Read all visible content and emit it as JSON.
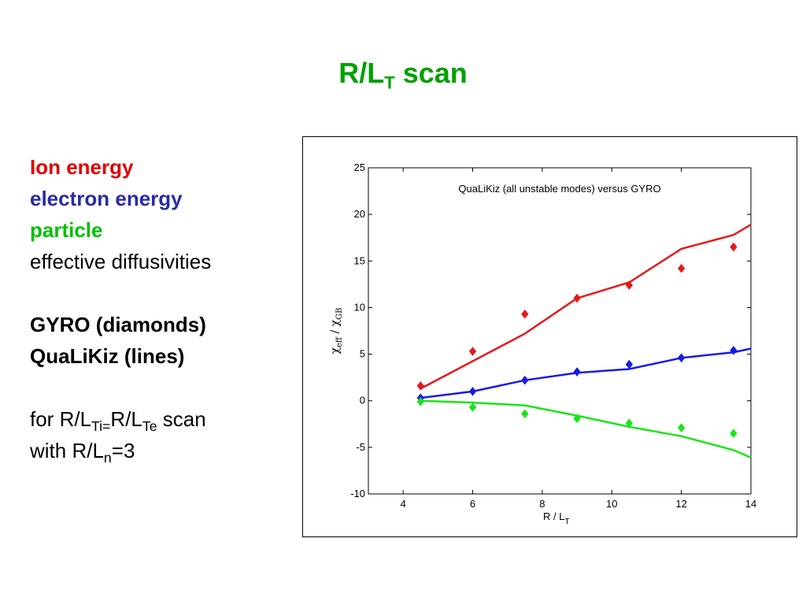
{
  "slide": {
    "title_main": "R/L",
    "title_sub": "T",
    "title_end": " scan",
    "lines": {
      "ion": "Ion energy",
      "electron": "electron energy",
      "particle": "particle",
      "effective": "effective diffusivities",
      "gyro": "GYRO (diamonds)",
      "qualikiz": "QuaLiKiz (lines)",
      "scan_a": "for R/L",
      "scan_ti": "Ti=",
      "scan_b": "R/L",
      "scan_te": "Te",
      "scan_c": " scan",
      "with_a": "with R/L",
      "with_n": "n",
      "with_b": "=3"
    }
  },
  "chart_data": {
    "type": "line",
    "title": "QuaLiKiz (all unstable modes) versus GYRO",
    "xlabel": "R / L",
    "xlabel_sub": "T",
    "ylabel": "χ",
    "ylabel_sub1": "eff",
    "ylabel_mid": " / χ",
    "ylabel_sub2": "GB",
    "xlim": [
      3,
      14
    ],
    "ylim": [
      -10,
      25
    ],
    "xticks": [
      4,
      6,
      8,
      10,
      12,
      14
    ],
    "yticks": [
      -10,
      -5,
      0,
      5,
      10,
      15,
      20,
      25
    ],
    "colors": {
      "ion": "#e41a1a",
      "electron": "#1a1ae4",
      "particle": "#1ae41a"
    },
    "series": [
      {
        "key": "ion",
        "kind": "line",
        "color": "#e41a1a",
        "x": [
          4.5,
          7.5,
          9,
          10.5,
          12,
          13.5,
          14
        ],
        "y": [
          1.3,
          7.2,
          11.0,
          12.7,
          16.3,
          17.8,
          18.9
        ]
      },
      {
        "key": "ion",
        "kind": "diamonds",
        "color": "#e41a1a",
        "x": [
          4.5,
          6,
          7.5,
          9,
          10.5,
          12,
          13.5
        ],
        "y": [
          1.6,
          5.3,
          9.3,
          11.0,
          12.4,
          14.2,
          16.5
        ]
      },
      {
        "key": "electron",
        "kind": "line",
        "color": "#1a1ae4",
        "x": [
          4.5,
          6,
          7.5,
          9,
          10.5,
          12,
          13.5,
          14
        ],
        "y": [
          0.3,
          1.0,
          2.2,
          3.0,
          3.4,
          4.6,
          5.2,
          5.6
        ]
      },
      {
        "key": "electron",
        "kind": "diamonds",
        "color": "#1a1ae4",
        "x": [
          4.5,
          6,
          7.5,
          9,
          10.5,
          12,
          13.5
        ],
        "y": [
          0.3,
          1.0,
          2.2,
          3.1,
          3.9,
          4.6,
          5.4
        ]
      },
      {
        "key": "particle",
        "kind": "line",
        "color": "#1ae41a",
        "x": [
          4.5,
          6,
          7.5,
          9,
          10.5,
          12,
          13.5,
          14
        ],
        "y": [
          0.0,
          -0.2,
          -0.5,
          -1.6,
          -2.8,
          -3.8,
          -5.3,
          -6.1
        ]
      },
      {
        "key": "particle",
        "kind": "diamonds",
        "color": "#1ae41a",
        "x": [
          4.5,
          6,
          7.5,
          9,
          10.5,
          12,
          13.5
        ],
        "y": [
          -0.1,
          -0.7,
          -1.4,
          -1.9,
          -2.4,
          -2.9,
          -3.5
        ]
      }
    ]
  }
}
